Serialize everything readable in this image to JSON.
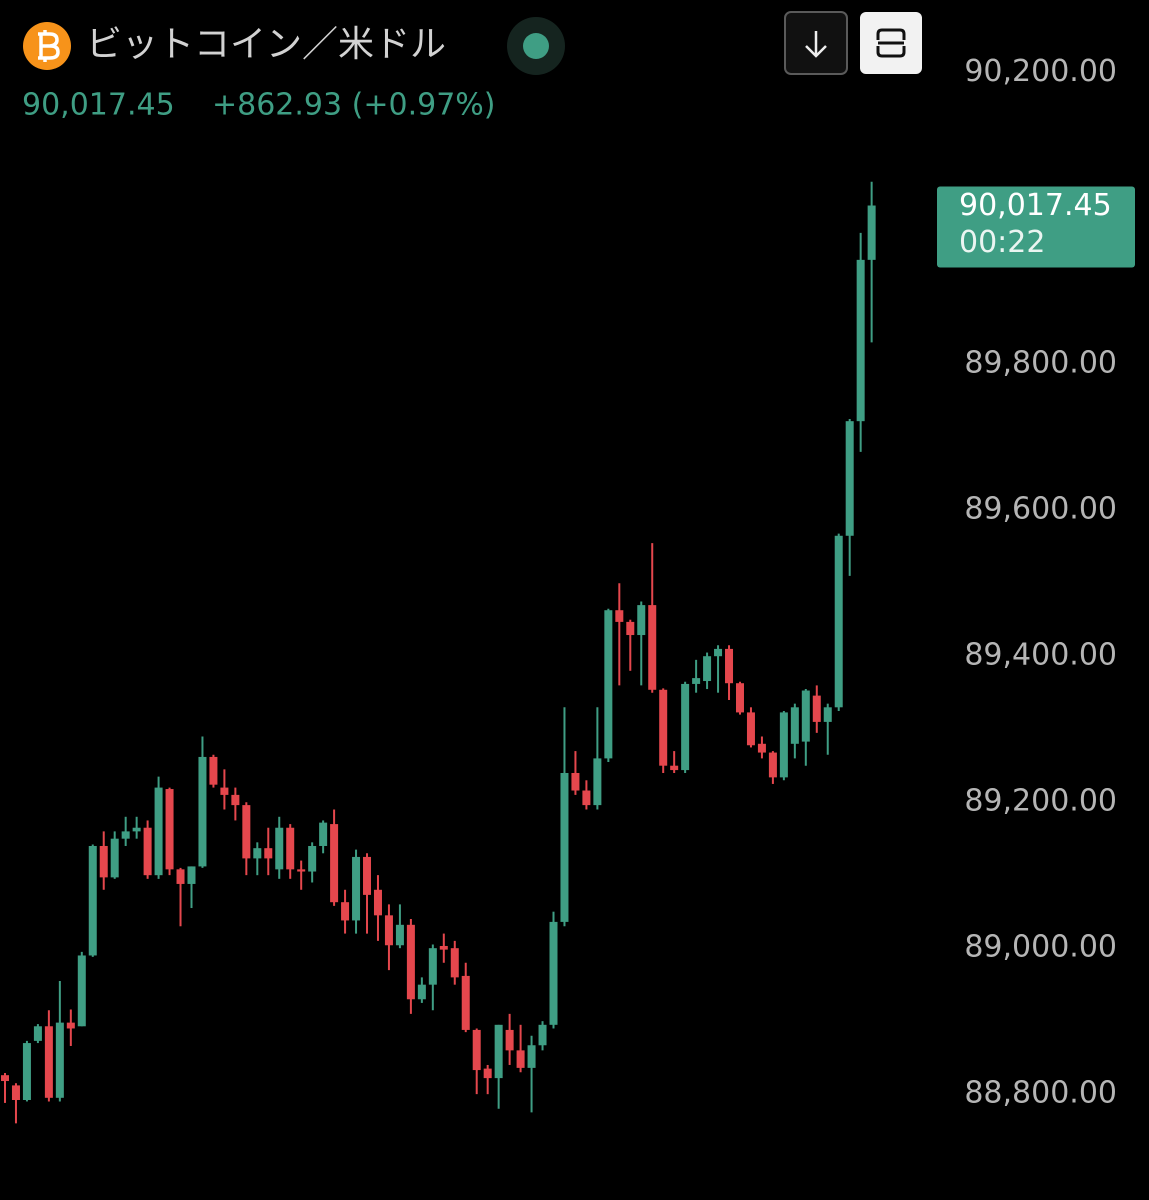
{
  "chart_data": {
    "type": "candlestick",
    "title": "ビットコイン／米ドル",
    "price_label": "90,017.45",
    "change_label": "+862.93 (+0.97%)",
    "countdown": "00:22",
    "up_color": "#3f9e84",
    "down_color": "#e5474d",
    "ylim": [
      88655,
      90299
    ],
    "yticks": [
      {
        "value": 88800,
        "label": "88,800.00"
      },
      {
        "value": 89000,
        "label": "89,000.00"
      },
      {
        "value": 89200,
        "label": "89,200.00"
      },
      {
        "value": 89400,
        "label": "89,400.00"
      },
      {
        "value": 89600,
        "label": "89,600.00"
      },
      {
        "value": 89800,
        "label": "89,800.00"
      },
      {
        "value": 90200,
        "label": "90,200.00"
      }
    ],
    "open": [
      88826,
      88812,
      88792,
      88873,
      88893,
      88795,
      88898,
      88893,
      88990,
      89140,
      89097,
      89150,
      89160,
      89165,
      89100,
      89218,
      89108,
      89088,
      89112,
      89262,
      89220,
      89210,
      89196,
      89123,
      89137,
      89108,
      89165,
      89108,
      89105,
      89140,
      89170,
      89063,
      89038,
      89125,
      89080,
      89045,
      89004,
      89032,
      88930,
      88950,
      89003,
      89000,
      88962,
      88888,
      88835,
      88822,
      88888,
      88860,
      88836,
      88867,
      88895,
      89036,
      89240,
      89216,
      89196,
      89260,
      89463,
      89447,
      89429,
      89470,
      89354,
      89250,
      89244,
      89362,
      89366,
      89400,
      89410,
      89363,
      89323,
      89280,
      89268,
      89234,
      89280,
      89283,
      89346,
      89310,
      89330,
      89565,
      89722,
      89943
    ],
    "high": [
      88829,
      88815,
      88873,
      88896,
      88915,
      88955,
      88916,
      88995,
      89142,
      89160,
      89160,
      89180,
      89180,
      89175,
      89235,
      89220,
      89110,
      89112,
      89290,
      89265,
      89245,
      89220,
      89200,
      89145,
      89165,
      89180,
      89170,
      89120,
      89145,
      89175,
      89190,
      89080,
      89135,
      89130,
      89100,
      89060,
      89060,
      89040,
      88960,
      89005,
      89020,
      89010,
      88980,
      88890,
      88840,
      88895,
      88910,
      88895,
      88880,
      88900,
      89050,
      89330,
      89270,
      89230,
      89330,
      89465,
      89500,
      89450,
      89475,
      89555,
      89356,
      89270,
      89365,
      89395,
      89405,
      89415,
      89415,
      89365,
      89330,
      89290,
      89270,
      89325,
      89335,
      89355,
      89360,
      89335,
      89568,
      89725,
      89980,
      90050
    ],
    "low": [
      88788,
      88760,
      88790,
      88870,
      88790,
      88790,
      88866,
      88893,
      88988,
      89080,
      89095,
      89140,
      89150,
      89095,
      89095,
      89100,
      89030,
      89055,
      89110,
      89220,
      89190,
      89175,
      89100,
      89100,
      89100,
      89095,
      89095,
      89080,
      89090,
      89130,
      89058,
      89020,
      89020,
      89020,
      89010,
      88970,
      89000,
      88910,
      88925,
      88915,
      88980,
      88950,
      88885,
      88800,
      88800,
      88780,
      88840,
      88830,
      88775,
      88860,
      88890,
      89030,
      89210,
      89190,
      89190,
      89255,
      89360,
      89380,
      89360,
      89350,
      89240,
      89240,
      89240,
      89350,
      89355,
      89350,
      89340,
      89320,
      89275,
      89260,
      89225,
      89230,
      89260,
      89250,
      89295,
      89265,
      89325,
      89510,
      89680,
      89830
    ],
    "close": [
      88818,
      88792,
      88870,
      88893,
      88795,
      88898,
      88890,
      88990,
      89140,
      89097,
      89150,
      89160,
      89165,
      89100,
      89220,
      89108,
      89088,
      89112,
      89262,
      89224,
      89210,
      89196,
      89123,
      89137,
      89123,
      89165,
      89108,
      89105,
      89140,
      89172,
      89063,
      89038,
      89125,
      89073,
      89045,
      89004,
      89032,
      88930,
      88950,
      89000,
      88998,
      88960,
      88888,
      88833,
      88822,
      88895,
      88860,
      88836,
      88867,
      88895,
      89036,
      89240,
      89216,
      89196,
      89260,
      89463,
      89447,
      89429,
      89470,
      89354,
      89250,
      89244,
      89362,
      89370,
      89400,
      89410,
      89363,
      89323,
      89278,
      89268,
      89234,
      89323,
      89330,
      89353,
      89310,
      89330,
      89565,
      89722,
      89943,
      90017.45
    ]
  }
}
